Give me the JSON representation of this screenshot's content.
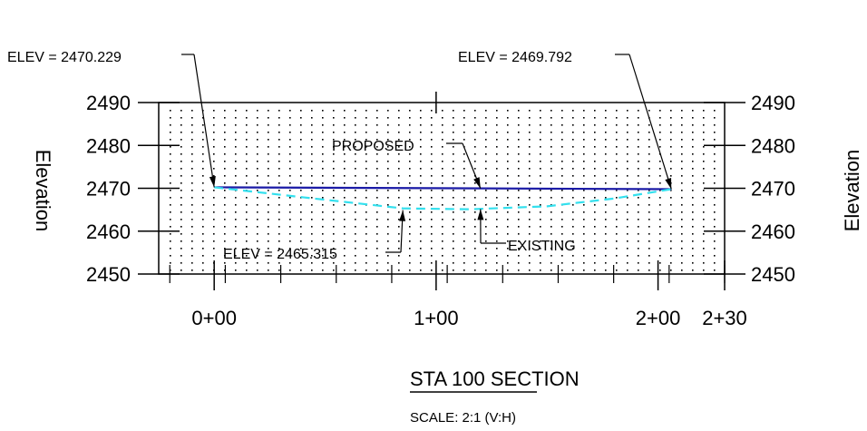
{
  "chart_data": {
    "type": "line",
    "title": "STA 100 SECTION",
    "subtitle": "SCALE: 2:1 (V:H)",
    "ylabel_left": "Elevation",
    "ylabel_right": "Elevation",
    "y_ticks": [
      2450,
      2460,
      2470,
      2480,
      2490
    ],
    "ylim": [
      2450,
      2490
    ],
    "xlim": [
      -25,
      230
    ],
    "x_ticks": [
      {
        "value": 0,
        "label": "0+00"
      },
      {
        "value": 100,
        "label": "1+00"
      },
      {
        "value": 200,
        "label": "2+00"
      },
      {
        "value": 230,
        "label": "2+30"
      }
    ],
    "grid": "dotted",
    "series": [
      {
        "name": "PROPOSED",
        "color": "#1a1aa6",
        "style": "solid",
        "points": [
          [
            0,
            2470.229
          ],
          [
            206,
            2469.792
          ]
        ]
      },
      {
        "name": "EXISTING",
        "color": "#33e0ee",
        "style": "dashed",
        "points": [
          [
            0,
            2470.229
          ],
          [
            40,
            2467.9
          ],
          [
            85,
            2465.315
          ],
          [
            115,
            2465.1
          ],
          [
            150,
            2465.8
          ],
          [
            180,
            2467.6
          ],
          [
            206,
            2469.792
          ]
        ]
      }
    ],
    "annotations": [
      {
        "text": "ELEV = 2470.229",
        "x": 0,
        "y": 2470.229
      },
      {
        "text": "ELEV = 2469.792",
        "x": 206,
        "y": 2469.792
      },
      {
        "text": "ELEV = 2465.315",
        "x": 85,
        "y": 2465.315
      }
    ]
  }
}
